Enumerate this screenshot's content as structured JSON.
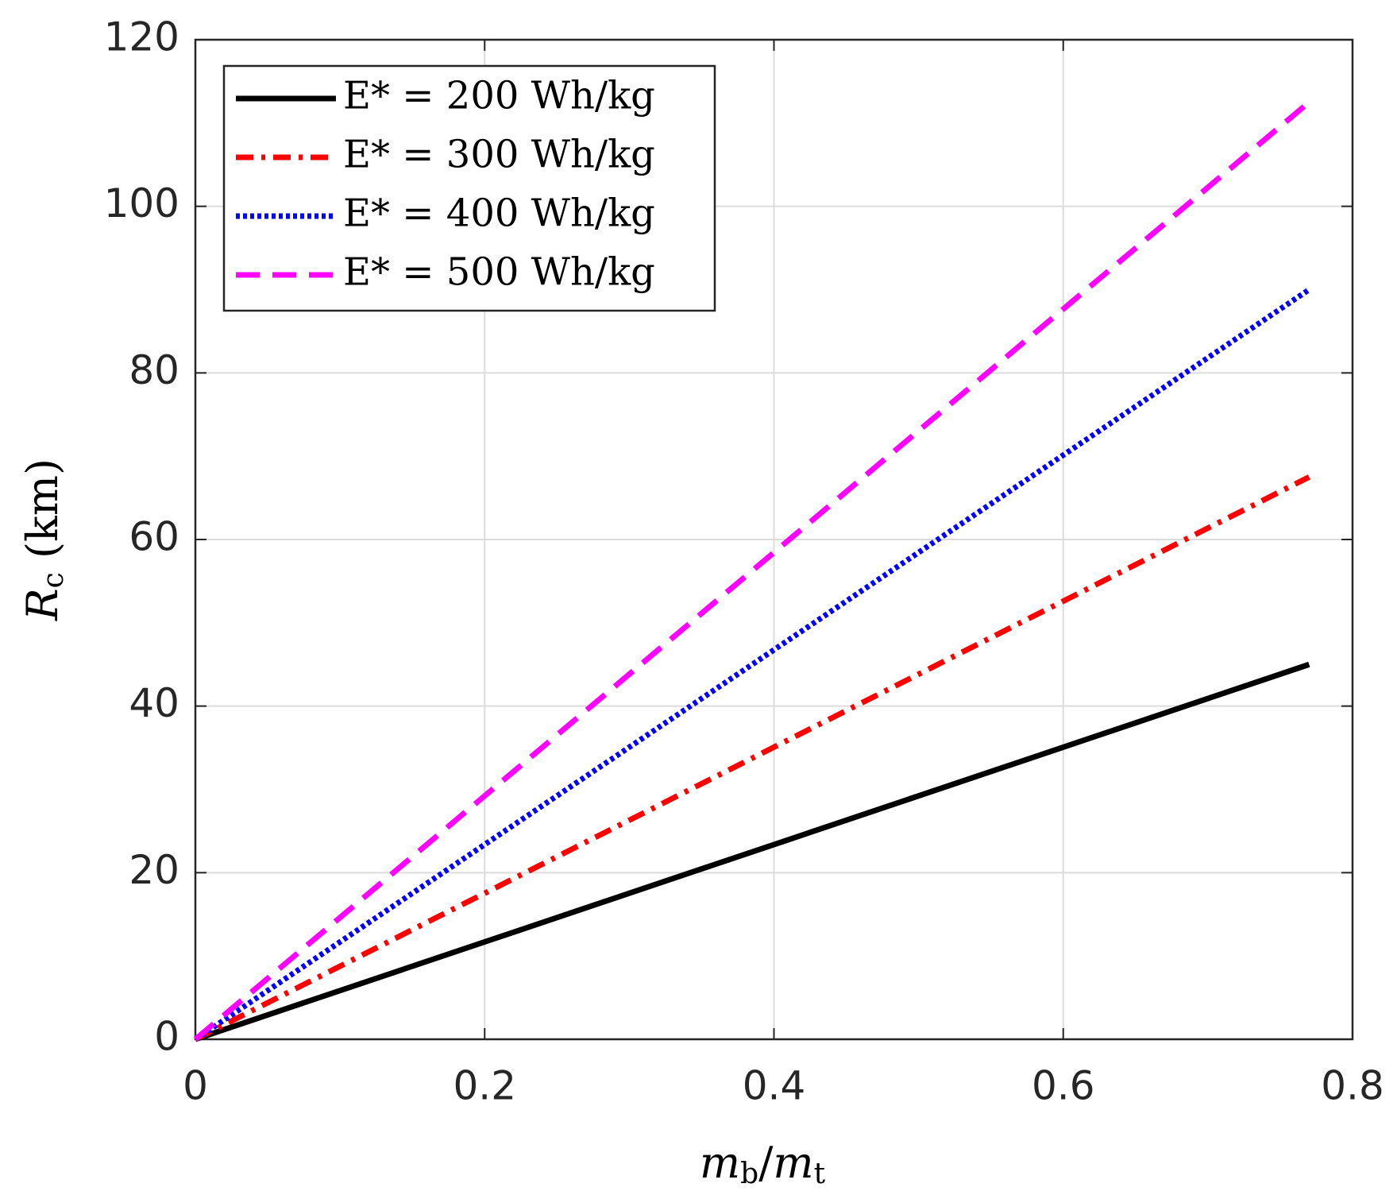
{
  "chart_data": {
    "type": "line",
    "xlabel": {
      "a": "m",
      "a_sub": "b",
      "slash": "/",
      "b": "m",
      "b_sub": "t"
    },
    "ylabel": {
      "main": "R",
      "sub": "c",
      "unit": " (km)"
    },
    "xlim": [
      0,
      0.8
    ],
    "xticks": [
      0,
      0.2,
      0.4,
      0.6,
      0.8
    ],
    "ylim": [
      0,
      120
    ],
    "yticks": [
      0,
      20,
      40,
      60,
      80,
      100,
      120
    ],
    "grid": true,
    "legend": "upper left",
    "x": [
      0,
      0.77
    ],
    "series": [
      {
        "name": "E* = 200 Wh/kg",
        "color": "#000000",
        "linestyle": "solid",
        "values": [
          0,
          45
        ]
      },
      {
        "name": "E* = 300 Wh/kg",
        "color": "#ff0000",
        "linestyle": "dashdot",
        "values": [
          0,
          67.5
        ]
      },
      {
        "name": "E* = 400 Wh/kg",
        "color": "#0000ff",
        "linestyle": "dotted",
        "values": [
          0,
          90
        ]
      },
      {
        "name": "E* = 500 Wh/kg",
        "color": "#ff00ff",
        "linestyle": "dashed",
        "values": [
          0,
          112.5
        ]
      }
    ]
  }
}
